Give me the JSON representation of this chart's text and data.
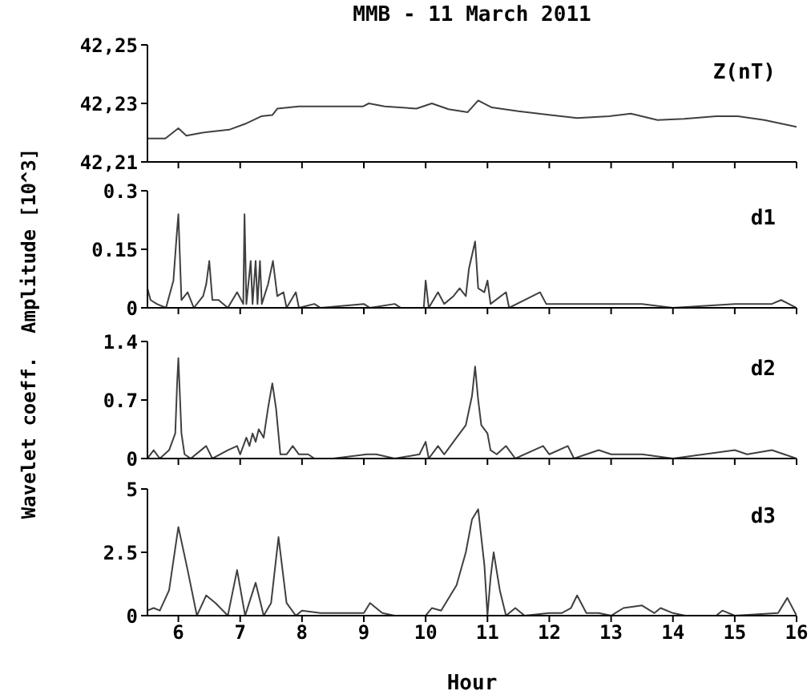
{
  "chart_data": [
    {
      "type": "line",
      "title": "MMB - 11 March 2011",
      "ylabel": "Wavelet coeff.  Amplitude [10^3]",
      "annotations": [
        "Z(nT)"
      ],
      "color": "#404040",
      "tick_labels": "y",
      "xlim": [
        5.5,
        16
      ],
      "xticks": [
        6,
        7,
        8,
        9,
        10,
        11,
        12,
        13,
        14,
        15,
        16
      ],
      "ylim": [
        42.21,
        42.25
      ],
      "yticks": [
        {
          "value": 42.21,
          "label": "42,21"
        },
        {
          "value": 42.23,
          "label": "42,23"
        },
        {
          "value": 42.25,
          "label": "42,25"
        }
      ],
      "x": [
        5.5,
        5.79,
        6.0,
        6.13,
        6.39,
        6.82,
        7.08,
        7.34,
        7.52,
        7.6,
        7.95,
        8.3,
        8.99,
        9.08,
        9.34,
        9.85,
        10.1,
        10.37,
        10.68,
        10.85,
        11.07,
        11.5,
        12.02,
        12.45,
        12.97,
        13.32,
        13.75,
        14.18,
        14.7,
        15.05,
        15.48,
        16
      ],
      "values": [
        42.218,
        42.218,
        42.2215,
        42.219,
        42.22,
        42.221,
        42.223,
        42.2256,
        42.226,
        42.2282,
        42.229,
        42.229,
        42.229,
        42.23,
        42.229,
        42.2282,
        42.23,
        42.228,
        42.227,
        42.231,
        42.2286,
        42.2273,
        42.226,
        42.225,
        42.2256,
        42.2265,
        42.2243,
        42.2247,
        42.2256,
        42.2256,
        42.2243,
        42.222
      ]
    },
    {
      "type": "line",
      "annotations": [
        "d1"
      ],
      "color": "#404040",
      "tick_labels": "y",
      "xlim": [
        5.5,
        16
      ],
      "xticks": [
        6,
        7,
        8,
        9,
        10,
        11,
        12,
        13,
        14,
        15,
        16
      ],
      "ylim": [
        0,
        0.3
      ],
      "yticks": [
        0,
        0.15,
        0.3
      ],
      "x": [
        5.5,
        5.55,
        5.65,
        5.8,
        5.92,
        5.97,
        6.0,
        6.05,
        6.15,
        6.25,
        6.4,
        6.45,
        6.5,
        6.55,
        6.65,
        6.8,
        6.95,
        7.05,
        7.07,
        7.1,
        7.17,
        7.2,
        7.25,
        7.28,
        7.32,
        7.35,
        7.45,
        7.53,
        7.6,
        7.7,
        7.75,
        7.9,
        7.95,
        8.2,
        8.3,
        9.0,
        9.1,
        9.5,
        9.6,
        9.97,
        10.0,
        10.05,
        10.2,
        10.3,
        10.45,
        10.55,
        10.65,
        10.7,
        10.8,
        10.85,
        10.95,
        11.0,
        11.05,
        11.3,
        11.35,
        11.85,
        11.95,
        12.4,
        13.5,
        14.0,
        15.0,
        15.6,
        15.75,
        16
      ],
      "values": [
        0.05,
        0.02,
        0.01,
        0,
        0.07,
        0.18,
        0.24,
        0.02,
        0.04,
        0,
        0.03,
        0.06,
        0.12,
        0.02,
        0.02,
        0,
        0.04,
        0.01,
        0.24,
        0.01,
        0.12,
        0.01,
        0.12,
        0.01,
        0.12,
        0.01,
        0.06,
        0.12,
        0.03,
        0.04,
        0,
        0.04,
        0,
        0.01,
        0,
        0.01,
        0,
        0.01,
        0,
        0,
        0.07,
        0,
        0.04,
        0.01,
        0.03,
        0.05,
        0.03,
        0.1,
        0.17,
        0.05,
        0.04,
        0.07,
        0.01,
        0.04,
        0,
        0.04,
        0.01,
        0.01,
        0.01,
        0,
        0.01,
        0.01,
        0.02,
        0
      ]
    },
    {
      "type": "line",
      "annotations": [
        "d2"
      ],
      "color": "#404040",
      "tick_labels": "y",
      "xlim": [
        5.5,
        16
      ],
      "xticks": [
        6,
        7,
        8,
        9,
        10,
        11,
        12,
        13,
        14,
        15,
        16
      ],
      "ylim": [
        0,
        1.4
      ],
      "yticks": [
        0,
        0.7,
        1.4
      ],
      "x": [
        5.5,
        5.6,
        5.7,
        5.85,
        5.95,
        5.98,
        6.0,
        6.05,
        6.1,
        6.2,
        6.45,
        6.55,
        6.8,
        6.95,
        7.0,
        7.1,
        7.15,
        7.2,
        7.25,
        7.3,
        7.38,
        7.45,
        7.52,
        7.58,
        7.65,
        7.75,
        7.85,
        7.95,
        8.1,
        8.2,
        8.5,
        9.05,
        9.2,
        9.5,
        9.9,
        10.0,
        10.05,
        10.2,
        10.3,
        10.5,
        10.65,
        10.75,
        10.8,
        10.85,
        10.9,
        11.0,
        11.05,
        11.15,
        11.3,
        11.45,
        11.9,
        12.0,
        12.3,
        12.4,
        12.8,
        13.0,
        13.5,
        14.0,
        14.5,
        15.0,
        15.2,
        15.6,
        15.8,
        16
      ],
      "values": [
        0,
        0.1,
        0,
        0.1,
        0.3,
        0.9,
        1.2,
        0.3,
        0.05,
        0,
        0.15,
        0,
        0.1,
        0.15,
        0.05,
        0.25,
        0.15,
        0.3,
        0.2,
        0.35,
        0.25,
        0.6,
        0.9,
        0.6,
        0.05,
        0.05,
        0.15,
        0.05,
        0.05,
        0,
        0,
        0.05,
        0.05,
        0,
        0.05,
        0.2,
        0,
        0.15,
        0.05,
        0.25,
        0.4,
        0.75,
        1.1,
        0.7,
        0.4,
        0.3,
        0.1,
        0.05,
        0.15,
        0,
        0.15,
        0.05,
        0.15,
        0,
        0.1,
        0.05,
        0.05,
        0,
        0.05,
        0.1,
        0.05,
        0.1,
        0.05,
        0
      ]
    },
    {
      "type": "line",
      "xlabel": "Hour",
      "annotations": [
        "d3"
      ],
      "color": "#404040",
      "xlim": [
        5.5,
        16
      ],
      "xticks": [
        6,
        7,
        8,
        9,
        10,
        11,
        12,
        13,
        14,
        15,
        16
      ],
      "ylim": [
        0,
        5
      ],
      "yticks": [
        0,
        2.5,
        5
      ],
      "x": [
        5.5,
        5.6,
        5.7,
        5.85,
        6.0,
        6.15,
        6.3,
        6.45,
        6.6,
        6.8,
        6.95,
        7.08,
        7.25,
        7.38,
        7.5,
        7.62,
        7.75,
        7.9,
        8.0,
        8.3,
        8.5,
        9.0,
        9.1,
        9.3,
        9.5,
        10.0,
        10.1,
        10.25,
        10.5,
        10.65,
        10.75,
        10.85,
        10.95,
        11.0,
        11.05,
        11.1,
        11.2,
        11.3,
        11.45,
        11.6,
        12.0,
        12.2,
        12.35,
        12.45,
        12.6,
        12.8,
        13.0,
        13.2,
        13.5,
        13.7,
        13.8,
        14.0,
        14.2,
        14.7,
        14.8,
        15.0,
        15.7,
        15.85,
        16
      ],
      "values": [
        0.2,
        0.3,
        0.2,
        1.0,
        3.5,
        1.8,
        0,
        0.8,
        0.5,
        0,
        1.8,
        0,
        1.3,
        0,
        0.5,
        3.1,
        0.5,
        0,
        0.2,
        0.1,
        0.1,
        0.1,
        0.5,
        0.1,
        0,
        0,
        0.3,
        0.2,
        1.2,
        2.5,
        3.8,
        4.2,
        2.0,
        0,
        1.5,
        2.5,
        1.0,
        0,
        0.3,
        0,
        0.1,
        0.1,
        0.3,
        0.8,
        0.1,
        0.1,
        0,
        0.3,
        0.4,
        0.1,
        0.3,
        0.1,
        0,
        0,
        0.2,
        0,
        0.1,
        0.7,
        0
      ]
    }
  ]
}
